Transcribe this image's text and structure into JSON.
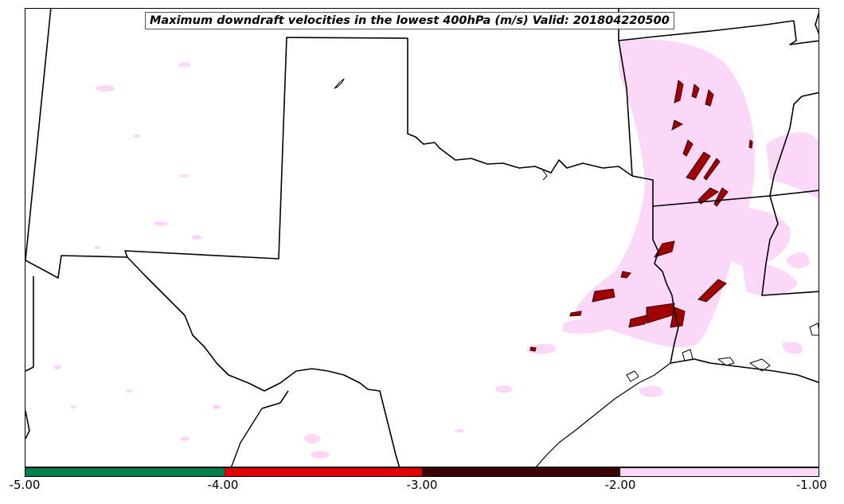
{
  "title": "Maximum downdraft velocities in the lowest 400hPa (m/s) Valid: 201804220500",
  "colorbar": {
    "segments": [
      {
        "from": -5.0,
        "to": -4.0,
        "color": "#00804f"
      },
      {
        "from": -4.0,
        "to": -3.0,
        "color": "#e00000"
      },
      {
        "from": -3.0,
        "to": -2.0,
        "color": "#3d0000"
      },
      {
        "from": -2.0,
        "to": -1.0,
        "color": "#fcd8f8"
      }
    ],
    "ticks": [
      "-5.00",
      "-4.00",
      "-3.00",
      "-2.00",
      "-1.00"
    ]
  },
  "colors": {
    "weak_downdraft": "#fcd8f8",
    "moderate_downdraft": "#3d0000",
    "strong_downdraft": "#e00000",
    "borders": "#000000"
  }
}
